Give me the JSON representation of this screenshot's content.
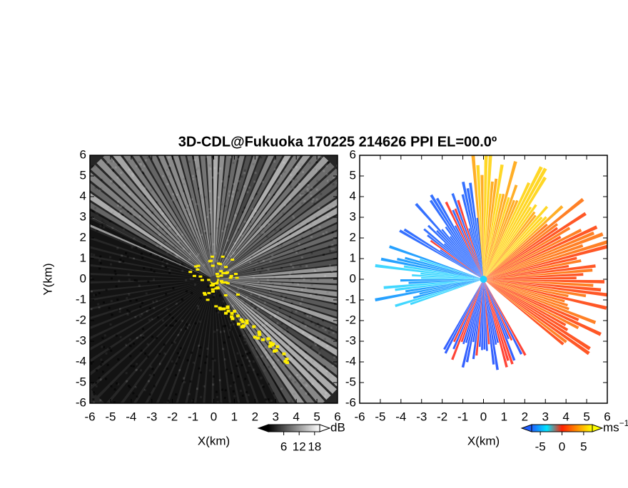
{
  "title": "3D-CDL@Fukuoka 170225 214626 PPI EL=00.0º",
  "chart_data": [
    {
      "type": "image",
      "xlabel": "X(km)",
      "ylabel": "Y(km)",
      "xlim": [
        -6,
        6
      ],
      "ylim": [
        -6,
        6
      ],
      "xticks": [
        -6,
        -5,
        -4,
        -3,
        -2,
        -1,
        0,
        1,
        2,
        3,
        4,
        5,
        6
      ],
      "yticks": [
        -6,
        -5,
        -4,
        -3,
        -2,
        -1,
        0,
        1,
        2,
        3,
        4,
        5,
        6
      ],
      "colorbar": {
        "unit": "dB",
        "clim": [
          0,
          20
        ],
        "ticks": [
          6,
          12,
          18
        ],
        "colors": [
          "#000000",
          "#ffffff"
        ]
      }
    },
    {
      "type": "image",
      "xlabel": "X(km)",
      "xlim": [
        -6,
        6
      ],
      "ylim": [
        -6,
        6
      ],
      "xticks": [
        -6,
        -5,
        -4,
        -3,
        -2,
        -1,
        0,
        1,
        2,
        3,
        4,
        5,
        6
      ],
      "yticks": [
        -6,
        -5,
        -4,
        -3,
        -2,
        -1,
        0,
        1,
        2,
        3,
        4,
        5,
        6
      ],
      "colorbar": {
        "unit": "ms",
        "unit_exponent": "−1",
        "clim": [
          -7,
          7
        ],
        "ticks": [
          -5,
          0,
          5
        ],
        "colors": [
          "#2060ff",
          "#00e5ff",
          "#ff2000",
          "#ff9000",
          "#ffff00"
        ]
      }
    }
  ]
}
